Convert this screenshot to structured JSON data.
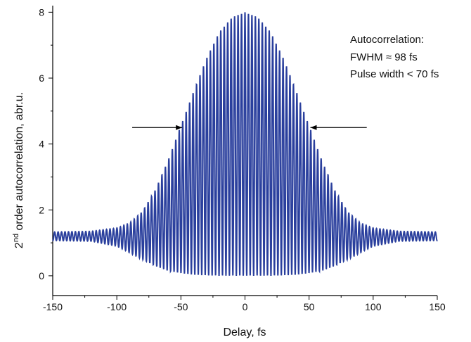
{
  "chart_data": {
    "type": "line",
    "title": "",
    "xlabel": "Delay, fs",
    "ylabel_prefix": "2",
    "ylabel_sup": "nd",
    "ylabel_rest": " order autocorrelation, abr.u.",
    "xlim": [
      -150,
      150
    ],
    "ylim": [
      -0.6,
      8.2
    ],
    "x_ticks": [
      -150,
      -100,
      -50,
      0,
      50,
      100,
      150
    ],
    "x_tick_labels": [
      "-150",
      "-100",
      "-50",
      "0",
      "50",
      "100",
      "150"
    ],
    "y_ticks": [
      0,
      2,
      4,
      6,
      8
    ],
    "y_tick_labels": [
      "0",
      "2",
      "4",
      "6",
      "8"
    ],
    "grid": false,
    "series": [
      {
        "color": "#2a3f9d",
        "description_params": {
          "background_level": 1.2,
          "background_fringe_amplitude": 0.13,
          "peak_value": 8.0,
          "minimum_near_center": 0.0,
          "fringe_period_fs": 2.7
        },
        "envelope_upper": {
          "x": [
            -150,
            -120,
            -100,
            -90,
            -80,
            -70,
            -60,
            -50,
            -40,
            -30,
            -20,
            -10,
            0,
            10,
            20,
            30,
            40,
            50,
            60,
            70,
            80,
            90,
            100,
            120,
            150
          ],
          "y": [
            1.33,
            1.35,
            1.45,
            1.6,
            1.95,
            2.6,
            3.5,
            4.55,
            5.6,
            6.6,
            7.4,
            7.85,
            8.0,
            7.85,
            7.4,
            6.6,
            5.6,
            4.55,
            3.5,
            2.6,
            1.95,
            1.6,
            1.45,
            1.35,
            1.33
          ]
        },
        "envelope_lower": {
          "x": [
            -150,
            -120,
            -100,
            -90,
            -80,
            -70,
            -60,
            -50,
            -40,
            -30,
            -20,
            -10,
            0,
            10,
            20,
            30,
            40,
            50,
            60,
            70,
            80,
            90,
            100,
            120,
            150
          ],
          "y": [
            1.07,
            1.05,
            0.9,
            0.7,
            0.5,
            0.3,
            0.15,
            0.08,
            0.03,
            0.01,
            0.0,
            0.0,
            0.0,
            0.0,
            0.0,
            0.01,
            0.03,
            0.08,
            0.15,
            0.3,
            0.5,
            0.7,
            0.9,
            1.05,
            1.07
          ]
        }
      }
    ],
    "fwhm_arrows": [
      {
        "from_x": -88,
        "to_x": -49,
        "y": 4.5
      },
      {
        "from_x": 95,
        "to_x": 51,
        "y": 4.5
      }
    ],
    "annotation_lines": [
      "Autocorrelation:",
      "FWHM ≈ 98 fs",
      "Pulse width < 70 fs"
    ]
  }
}
